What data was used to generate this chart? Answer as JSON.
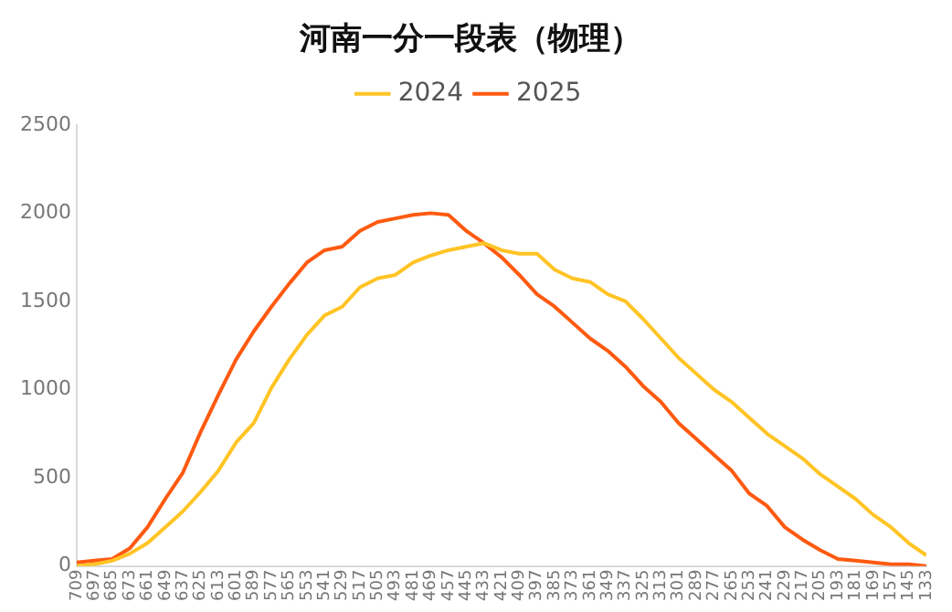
{
  "chart_data": {
    "type": "line",
    "title": "河南一分一段表（物理）",
    "legend": "top",
    "grid": false,
    "marker": "none",
    "x": [
      709,
      697,
      685,
      673,
      661,
      649,
      637,
      625,
      613,
      601,
      589,
      577,
      565,
      553,
      541,
      529,
      517,
      505,
      493,
      481,
      469,
      457,
      445,
      433,
      421,
      409,
      397,
      385,
      373,
      361,
      349,
      337,
      325,
      313,
      301,
      289,
      277,
      265,
      253,
      241,
      229,
      217,
      205,
      193,
      181,
      169,
      157,
      145,
      133
    ],
    "xlim": [
      709,
      133
    ],
    "xticks": [
      709,
      697,
      685,
      673,
      661,
      649,
      637,
      625,
      613,
      601,
      589,
      577,
      565,
      553,
      541,
      529,
      517,
      505,
      493,
      481,
      469,
      457,
      445,
      433,
      421,
      409,
      397,
      385,
      373,
      361,
      349,
      337,
      325,
      313,
      301,
      289,
      277,
      265,
      253,
      241,
      229,
      217,
      205,
      193,
      181,
      169,
      157,
      145,
      133
    ],
    "ylim": [
      0,
      2500
    ],
    "yticks": [
      0,
      500,
      1000,
      1500,
      2000,
      2500
    ],
    "series": [
      {
        "name": "2024",
        "color": "#ffc425",
        "values": [
          0,
          10,
          30,
          70,
          130,
          220,
          310,
          420,
          540,
          700,
          810,
          1010,
          1170,
          1310,
          1420,
          1470,
          1580,
          1630,
          1650,
          1720,
          1760,
          1790,
          1810,
          1830,
          1790,
          1770,
          1770,
          1680,
          1630,
          1610,
          1540,
          1500,
          1400,
          1290,
          1180,
          1090,
          1000,
          930,
          840,
          750,
          680,
          610,
          520,
          450,
          380,
          290,
          220,
          130,
          60
        ]
      },
      {
        "name": "2025",
        "color": "#ff5a10",
        "values": [
          20,
          30,
          40,
          100,
          220,
          380,
          530,
          760,
          970,
          1170,
          1330,
          1470,
          1600,
          1720,
          1790,
          1810,
          1900,
          1950,
          1970,
          1990,
          2000,
          1990,
          1900,
          1830,
          1750,
          1650,
          1540,
          1470,
          1380,
          1290,
          1220,
          1130,
          1020,
          930,
          810,
          720,
          630,
          540,
          410,
          340,
          220,
          150,
          90,
          40,
          30,
          20,
          10,
          10,
          0
        ]
      }
    ]
  }
}
